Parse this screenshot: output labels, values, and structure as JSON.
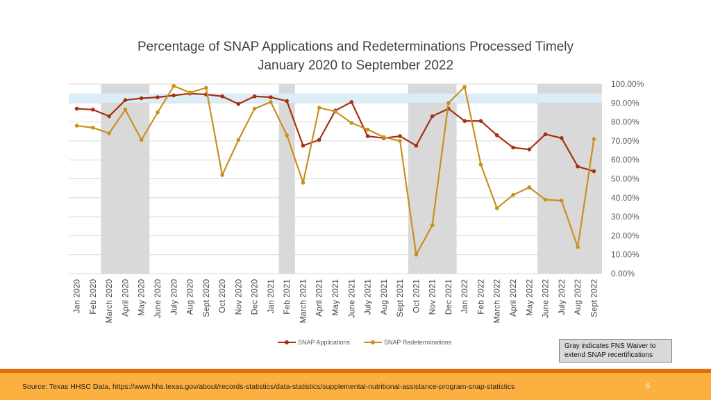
{
  "title": {
    "line1": "Percentage of SNAP Applications and Redeterminations Processed Timely",
    "line2": "January 2020 to September 2022"
  },
  "chart_data": {
    "type": "line",
    "title": "Percentage of SNAP Applications and Redeterminations Processed Timely January 2020 to September 2022",
    "categories": [
      "Jan 2020",
      "Feb 2020",
      "March 2020",
      "April 2020",
      "May 2020",
      "June 2020",
      "July 2020",
      "Aug 2020",
      "Sept 2020",
      "Oct 2020",
      "Nov 2020",
      "Dec 2020",
      "Jan 2021",
      "Feb 2021",
      "March 2021",
      "April 2021",
      "May 2021",
      "June 2021",
      "July 2021",
      "Aug 2021",
      "Sept 2021",
      "Oct 2021",
      "Nov 2021",
      "Dec 2021",
      "Jan 2022",
      "Feb 2022",
      "March 2022",
      "April 2022",
      "May 2022",
      "June 2022",
      "July 2022",
      "Aug 2022",
      "Sept 2022"
    ],
    "series": [
      {
        "name": "SNAP Applications",
        "color": "#a5300f",
        "values": [
          87,
          86.5,
          83,
          91.5,
          92.5,
          93,
          94,
          95,
          94.5,
          93.5,
          89.5,
          93.5,
          93,
          91,
          67.5,
          70.5,
          86,
          90.5,
          72.5,
          71.5,
          72.5,
          67.5,
          83,
          87,
          80.5,
          80.5,
          73,
          66.5,
          65.5,
          73.5,
          71.5,
          56.5,
          54
        ]
      },
      {
        "name": "SNAP Redeterminations",
        "color": "#c8901e",
        "values": [
          78,
          77,
          74,
          86.5,
          70.5,
          85,
          99,
          95.5,
          98,
          52,
          70.5,
          87,
          90.5,
          73,
          48,
          87.5,
          85.5,
          79.5,
          76,
          72,
          70,
          10,
          25.5,
          90,
          98.5,
          57.5,
          34.5,
          41.5,
          45.5,
          39,
          38.5,
          14,
          71
        ]
      }
    ],
    "ylim": [
      0,
      100
    ],
    "yticks": [
      0,
      10,
      20,
      30,
      40,
      50,
      60,
      70,
      80,
      90,
      100
    ],
    "ytick_labels": [
      "0.00%",
      "10.00%",
      "20.00%",
      "30.00%",
      "40.00%",
      "50.00%",
      "60.00%",
      "70.00%",
      "80.00%",
      "90.00%",
      "100.00%"
    ],
    "gray_bands": [
      [
        "March 2020",
        "May 2020"
      ],
      [
        "Feb 2021",
        "Feb 2021"
      ],
      [
        "Oct 2021",
        "Dec 2021"
      ],
      [
        "June 2022",
        "Sept 2022"
      ]
    ],
    "gray_band_color": "#d9d9d9",
    "target_band": [
      90,
      95
    ],
    "target_band_color": "#dcedf8",
    "grid": true
  },
  "legend": {
    "applications_label": "SNAP Applications",
    "redeterminations_label": "SNAP Redeterminations"
  },
  "note": {
    "text": "Gray indicates FNS Waiver to extend SNAP recertifications"
  },
  "footer": {
    "source": "Source: Texas HHSC Data, https://www.hhs.texas.gov/about/records-statistics/data-statistics/supplemental-nutritional-assistance-program-snap-statistics",
    "page_number": "6"
  },
  "colors": {
    "applications": "#a5300f",
    "redeterminations": "#c8901e",
    "footer_bar": "#fbb040",
    "footer_rule": "#e46c0a"
  }
}
